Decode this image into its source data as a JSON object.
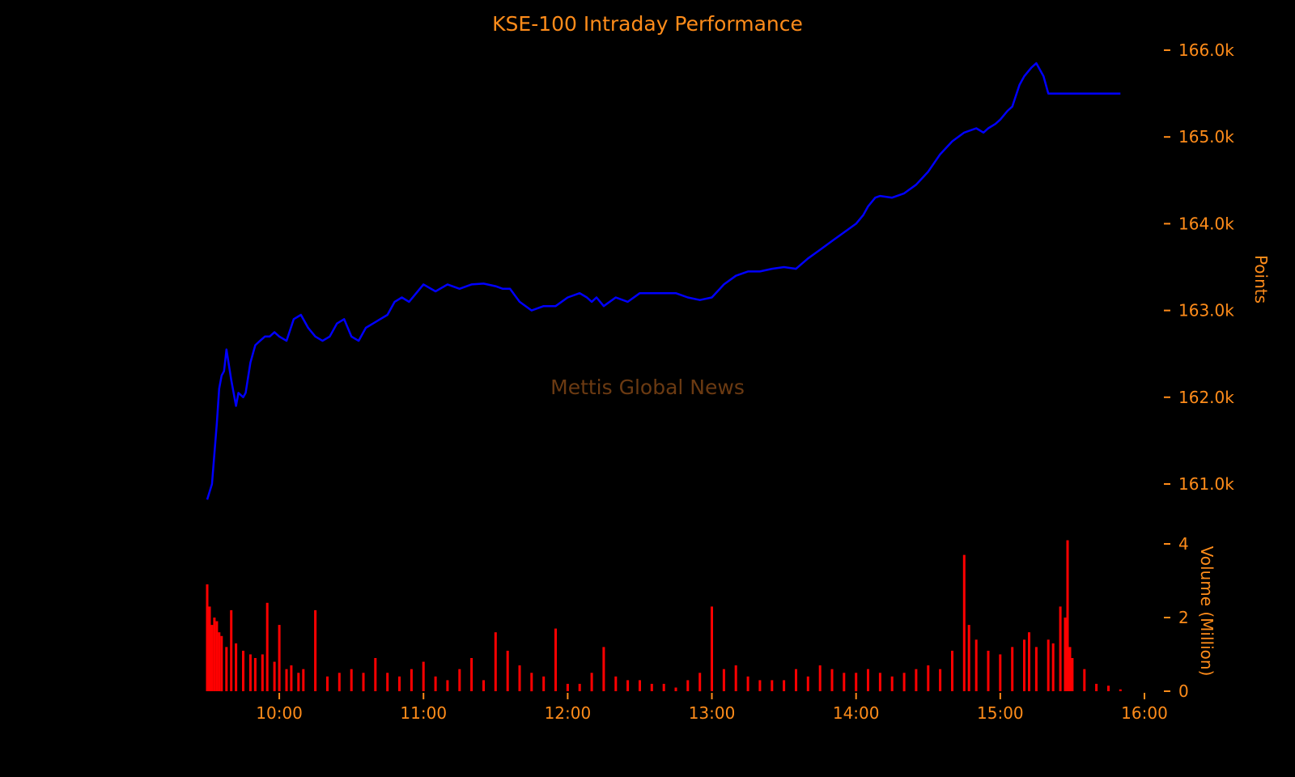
{
  "colors": {
    "background": "#000000",
    "text": "#ff8c1a",
    "price_line": "#0000ff",
    "volume_bars": "#ff0000",
    "watermark": "#6b3a12"
  },
  "watermark": "Mettis Global News",
  "chart_data": [
    {
      "type": "line",
      "title": "KSE-100 Intraday Performance",
      "ylabel": "Points",
      "y_axis_side": "right",
      "xlim": [
        "09:30",
        "16:00"
      ],
      "ylim": [
        160700,
        166100
      ],
      "yticks": [
        161000,
        162000,
        163000,
        164000,
        165000,
        166000
      ],
      "ytick_labels": [
        "161.0k",
        "162.0k",
        "163.0k",
        "164.0k",
        "165.0k",
        "166.0k"
      ],
      "grid": false,
      "series": [
        {
          "x": [
            "09:30",
            "09:32",
            "09:34",
            "09:35",
            "09:36",
            "09:37",
            "09:38",
            "09:40",
            "09:42",
            "09:43",
            "09:45",
            "09:46",
            "09:48",
            "09:50",
            "09:52",
            "09:54",
            "09:56",
            "09:58",
            "10:00",
            "10:03",
            "10:06",
            "10:09",
            "10:12",
            "10:15",
            "10:18",
            "10:21",
            "10:24",
            "10:27",
            "10:30",
            "10:33",
            "10:36",
            "10:39",
            "10:42",
            "10:45",
            "10:48",
            "10:51",
            "10:54",
            "10:57",
            "11:00",
            "11:05",
            "11:10",
            "11:15",
            "11:20",
            "11:25",
            "11:30",
            "11:33",
            "11:36",
            "11:40",
            "11:45",
            "11:50",
            "11:55",
            "12:00",
            "12:05",
            "12:08",
            "12:10",
            "12:12",
            "12:15",
            "12:20",
            "12:25",
            "12:30",
            "12:35",
            "12:40",
            "12:45",
            "12:50",
            "12:55",
            "13:00",
            "13:05",
            "13:10",
            "13:15",
            "13:20",
            "13:25",
            "13:30",
            "13:35",
            "13:40",
            "13:45",
            "13:50",
            "13:55",
            "14:00",
            "14:03",
            "14:05",
            "14:08",
            "14:10",
            "14:15",
            "14:20",
            "14:25",
            "14:30",
            "14:35",
            "14:40",
            "14:45",
            "14:50",
            "14:53",
            "14:55",
            "14:58",
            "15:00",
            "15:03",
            "15:05",
            "15:08",
            "15:10",
            "15:13",
            "15:15",
            "15:18",
            "15:20",
            "15:23",
            "15:25",
            "15:27",
            "15:28",
            "15:29",
            "15:30",
            "15:35",
            "15:45",
            "15:50"
          ],
          "values": [
            160820,
            161000,
            161700,
            162100,
            162250,
            162300,
            162550,
            162200,
            161900,
            162050,
            162000,
            162050,
            162400,
            162600,
            162650,
            162700,
            162700,
            162750,
            162700,
            162650,
            162900,
            162950,
            162800,
            162700,
            162650,
            162700,
            162850,
            162900,
            162700,
            162650,
            162800,
            162850,
            162900,
            162950,
            163100,
            163150,
            163100,
            163200,
            163300,
            163220,
            163300,
            163250,
            163300,
            163310,
            163280,
            163250,
            163250,
            163100,
            163000,
            163050,
            163050,
            163150,
            163200,
            163150,
            163100,
            163150,
            163050,
            163150,
            163100,
            163200,
            163200,
            163200,
            163200,
            163150,
            163120,
            163150,
            163300,
            163400,
            163450,
            163450,
            163480,
            163500,
            163480,
            163600,
            163700,
            163800,
            163900,
            164000,
            164100,
            164200,
            164300,
            164320,
            164300,
            164350,
            164450,
            164600,
            164800,
            164950,
            165050,
            165100,
            165050,
            165100,
            165150,
            165200,
            165300,
            165350,
            165600,
            165700,
            165800,
            165850,
            165700,
            165500,
            165500,
            165500,
            165500,
            165500,
            165500,
            165500,
            165500,
            165500,
            165500
          ]
        }
      ]
    },
    {
      "type": "bar",
      "ylabel": "Volume (Million)",
      "y_axis_side": "right",
      "xlim": [
        "09:30",
        "16:00"
      ],
      "ylim": [
        0,
        4.2
      ],
      "yticks": [
        0,
        2,
        4
      ],
      "ytick_labels": [
        "0",
        "2",
        "4"
      ],
      "xticks": [
        "10:00",
        "11:00",
        "12:00",
        "13:00",
        "14:00",
        "15:00",
        "16:00"
      ],
      "grid": false,
      "series": [
        {
          "x": [
            "09:30",
            "09:31",
            "09:32",
            "09:33",
            "09:34",
            "09:35",
            "09:36",
            "09:38",
            "09:40",
            "09:42",
            "09:45",
            "09:48",
            "09:50",
            "09:53",
            "09:55",
            "09:58",
            "10:00",
            "10:03",
            "10:05",
            "10:08",
            "10:10",
            "10:15",
            "10:20",
            "10:25",
            "10:30",
            "10:35",
            "10:40",
            "10:45",
            "10:50",
            "10:55",
            "11:00",
            "11:05",
            "11:10",
            "11:15",
            "11:20",
            "11:25",
            "11:30",
            "11:35",
            "11:40",
            "11:45",
            "11:50",
            "11:55",
            "12:00",
            "12:05",
            "12:10",
            "12:15",
            "12:20",
            "12:25",
            "12:30",
            "12:35",
            "12:40",
            "12:45",
            "12:50",
            "12:55",
            "13:00",
            "13:05",
            "13:10",
            "13:15",
            "13:20",
            "13:25",
            "13:30",
            "13:35",
            "13:40",
            "13:45",
            "13:50",
            "13:55",
            "14:00",
            "14:05",
            "14:10",
            "14:15",
            "14:20",
            "14:25",
            "14:30",
            "14:35",
            "14:40",
            "14:45",
            "14:47",
            "14:50",
            "14:55",
            "15:00",
            "15:05",
            "15:10",
            "15:12",
            "15:15",
            "15:20",
            "15:22",
            "15:25",
            "15:27",
            "15:28",
            "15:29",
            "15:30",
            "15:35",
            "15:40",
            "15:45",
            "15:50"
          ],
          "values": [
            2.9,
            2.3,
            1.8,
            2.0,
            1.9,
            1.6,
            1.5,
            1.2,
            2.2,
            1.3,
            1.1,
            1.0,
            0.9,
            1.0,
            2.4,
            0.8,
            1.8,
            0.6,
            0.7,
            0.5,
            0.6,
            2.2,
            0.4,
            0.5,
            0.6,
            0.5,
            0.9,
            0.5,
            0.4,
            0.6,
            0.8,
            0.4,
            0.3,
            0.6,
            0.9,
            0.3,
            1.6,
            1.1,
            0.7,
            0.5,
            0.4,
            1.7,
            0.2,
            0.2,
            0.5,
            1.2,
            0.4,
            0.3,
            0.3,
            0.2,
            0.2,
            0.1,
            0.3,
            0.5,
            2.3,
            0.6,
            0.7,
            0.4,
            0.3,
            0.3,
            0.3,
            0.6,
            0.4,
            0.7,
            0.6,
            0.5,
            0.5,
            0.6,
            0.5,
            0.4,
            0.5,
            0.6,
            0.7,
            0.6,
            1.1,
            3.7,
            1.8,
            1.4,
            1.1,
            1.0,
            1.2,
            1.4,
            1.6,
            1.2,
            1.4,
            1.3,
            2.3,
            2.0,
            4.1,
            1.2,
            0.9,
            0.6,
            0.2,
            0.15,
            0.05
          ]
        }
      ]
    }
  ]
}
